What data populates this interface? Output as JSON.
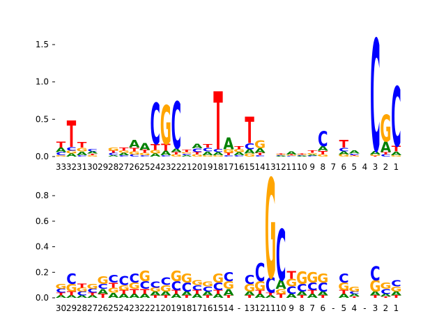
{
  "colors": {
    "A": "#008000",
    "C": "#0000ff",
    "G": "#ffa500",
    "T": "#ff0000",
    "axis": "#000000"
  },
  "chart_data": [
    {
      "type": "sequence-logo",
      "title": "",
      "xlabel": "",
      "ylabel": "",
      "ylim": [
        0,
        1.65
      ],
      "yticks": [
        "0.0",
        "0.5",
        "1.0",
        "1.5"
      ],
      "ytick_values": [
        0.0,
        0.5,
        1.0,
        1.5
      ],
      "positions": [
        {
          "label": "33",
          "letters": {
            "A": 0.06,
            "C": 0.04,
            "G": 0.02,
            "T": 0.08
          }
        },
        {
          "label": "32",
          "letters": {
            "A": 0.04,
            "C": 0.05,
            "G": 0.04,
            "T": 0.35
          }
        },
        {
          "label": "31",
          "letters": {
            "A": 0.05,
            "C": 0.02,
            "G": 0.05,
            "T": 0.07
          }
        },
        {
          "label": "30",
          "letters": {
            "A": 0.03,
            "C": 0.03,
            "G": 0.02,
            "T": 0.02
          }
        },
        {
          "label": "29",
          "letters": {
            "A": 0.0,
            "C": 0.0,
            "G": 0.0,
            "T": 0.0
          }
        },
        {
          "label": "28",
          "letters": {
            "A": 0.02,
            "C": 0.03,
            "G": 0.04,
            "T": 0.03
          }
        },
        {
          "label": "27",
          "letters": {
            "A": 0.03,
            "C": 0.02,
            "G": 0.03,
            "T": 0.04
          }
        },
        {
          "label": "26",
          "letters": {
            "A": 0.1,
            "C": 0.03,
            "G": 0.04,
            "T": 0.05
          }
        },
        {
          "label": "25",
          "letters": {
            "A": 0.09,
            "C": 0.02,
            "G": 0.03,
            "T": 0.04
          }
        },
        {
          "label": "24",
          "letters": {
            "A": 0.04,
            "C": 0.55,
            "G": 0.05,
            "T": 0.08
          }
        },
        {
          "label": "23",
          "letters": {
            "A": 0.06,
            "C": 0.02,
            "G": 0.52,
            "T": 0.09
          }
        },
        {
          "label": "22",
          "letters": {
            "A": 0.05,
            "C": 0.63,
            "G": 0.03,
            "T": 0.03
          }
        },
        {
          "label": "21",
          "letters": {
            "A": 0.02,
            "C": 0.02,
            "G": 0.02,
            "T": 0.03
          }
        },
        {
          "label": "20",
          "letters": {
            "A": 0.06,
            "C": 0.05,
            "G": 0.03,
            "T": 0.03
          }
        },
        {
          "label": "19",
          "letters": {
            "A": 0.05,
            "C": 0.05,
            "G": 0.02,
            "T": 0.05
          }
        },
        {
          "label": "18",
          "letters": {
            "A": 0.04,
            "C": 0.04,
            "G": 0.02,
            "T": 0.78
          }
        },
        {
          "label": "17",
          "letters": {
            "A": 0.16,
            "C": 0.02,
            "G": 0.05,
            "T": 0.03
          }
        },
        {
          "label": "16",
          "letters": {
            "A": 0.04,
            "C": 0.02,
            "G": 0.04,
            "T": 0.04
          }
        },
        {
          "label": "15",
          "letters": {
            "A": 0.06,
            "C": 0.08,
            "G": 0.04,
            "T": 0.35
          }
        },
        {
          "label": "14",
          "letters": {
            "A": 0.06,
            "C": 0.02,
            "G": 0.11,
            "T": 0.03
          }
        },
        {
          "label": "13",
          "letters": {
            "A": 0.0,
            "C": 0.0,
            "G": 0.0,
            "T": 0.0
          }
        },
        {
          "label": "12",
          "letters": {
            "A": 0.01,
            "C": 0.01,
            "G": 0.01,
            "T": 0.01
          }
        },
        {
          "label": "11",
          "letters": {
            "A": 0.04,
            "C": 0.01,
            "G": 0.01,
            "T": 0.01
          }
        },
        {
          "label": "10",
          "letters": {
            "A": 0.01,
            "C": 0.01,
            "G": 0.01,
            "T": 0.01
          }
        },
        {
          "label": "9",
          "letters": {
            "A": 0.02,
            "C": 0.01,
            "G": 0.02,
            "T": 0.03
          }
        },
        {
          "label": "8",
          "letters": {
            "A": 0.06,
            "C": 0.2,
            "G": 0.03,
            "T": 0.05
          }
        },
        {
          "label": "7",
          "letters": {
            "A": 0.0,
            "C": 0.0,
            "G": 0.0,
            "T": 0.0
          }
        },
        {
          "label": "6",
          "letters": {
            "A": 0.04,
            "C": 0.05,
            "G": 0.03,
            "T": 0.1
          }
        },
        {
          "label": "5",
          "letters": {
            "A": 0.04,
            "C": 0.02,
            "G": 0.01,
            "T": 0.01
          }
        },
        {
          "label": "4",
          "letters": {
            "A": 0.0,
            "C": 0.0,
            "G": 0.0,
            "T": 0.0
          }
        },
        {
          "label": "3",
          "letters": {
            "A": 0.05,
            "C": 1.5,
            "G": 0.02,
            "T": 0.01
          }
        },
        {
          "label": "2",
          "letters": {
            "A": 0.14,
            "C": 0.03,
            "G": 0.36,
            "T": 0.03
          }
        },
        {
          "label": "1",
          "letters": {
            "A": 0.05,
            "C": 0.8,
            "G": 0.02,
            "T": 0.07
          }
        }
      ]
    },
    {
      "type": "sequence-logo",
      "title": "",
      "xlabel": "",
      "ylabel": "",
      "ylim": [
        0,
        0.97
      ],
      "yticks": [
        "0.0",
        "0.2",
        "0.4",
        "0.6",
        "0.8"
      ],
      "ytick_values": [
        0.0,
        0.2,
        0.4,
        0.6,
        0.8
      ],
      "positions": [
        {
          "label": "30",
          "letters": {
            "A": 0.02,
            "C": 0.03,
            "G": 0.04,
            "T": 0.02
          }
        },
        {
          "label": "29",
          "letters": {
            "A": 0.02,
            "C": 0.08,
            "G": 0.06,
            "T": 0.03
          }
        },
        {
          "label": "28",
          "letters": {
            "A": 0.02,
            "C": 0.03,
            "G": 0.03,
            "T": 0.03
          }
        },
        {
          "label": "27",
          "letters": {
            "A": 0.02,
            "C": 0.03,
            "G": 0.04,
            "T": 0.02
          }
        },
        {
          "label": "26",
          "letters": {
            "A": 0.04,
            "C": 0.04,
            "G": 0.06,
            "T": 0.03
          }
        },
        {
          "label": "25",
          "letters": {
            "A": 0.04,
            "C": 0.06,
            "G": 0.04,
            "T": 0.04
          }
        },
        {
          "label": "24",
          "letters": {
            "A": 0.03,
            "C": 0.07,
            "G": 0.04,
            "T": 0.03
          }
        },
        {
          "label": "23",
          "letters": {
            "A": 0.03,
            "C": 0.07,
            "G": 0.05,
            "T": 0.04
          }
        },
        {
          "label": "22",
          "letters": {
            "A": 0.03,
            "C": 0.06,
            "G": 0.08,
            "T": 0.04
          }
        },
        {
          "label": "21",
          "letters": {
            "A": 0.03,
            "C": 0.05,
            "G": 0.03,
            "T": 0.02
          }
        },
        {
          "label": "20",
          "letters": {
            "A": 0.03,
            "C": 0.06,
            "G": 0.05,
            "T": 0.02
          }
        },
        {
          "label": "19",
          "letters": {
            "A": 0.03,
            "C": 0.07,
            "G": 0.08,
            "T": 0.03
          }
        },
        {
          "label": "18",
          "letters": {
            "A": 0.03,
            "C": 0.07,
            "G": 0.07,
            "T": 0.02
          }
        },
        {
          "label": "17",
          "letters": {
            "A": 0.03,
            "C": 0.04,
            "G": 0.04,
            "T": 0.03
          }
        },
        {
          "label": "16",
          "letters": {
            "A": 0.03,
            "C": 0.04,
            "G": 0.04,
            "T": 0.02
          }
        },
        {
          "label": "15",
          "letters": {
            "A": 0.03,
            "C": 0.06,
            "G": 0.07,
            "T": 0.03
          }
        },
        {
          "label": "14",
          "letters": {
            "A": 0.05,
            "C": 0.07,
            "G": 0.06,
            "T": 0.02
          }
        },
        {
          "label": "-",
          "letters": {
            "A": 0.0,
            "C": 0.0,
            "G": 0.0,
            "T": 0.0
          }
        },
        {
          "label": "13",
          "letters": {
            "A": 0.03,
            "C": 0.07,
            "G": 0.06,
            "T": 0.02
          }
        },
        {
          "label": "12",
          "letters": {
            "A": 0.03,
            "C": 0.14,
            "G": 0.07,
            "T": 0.03
          }
        },
        {
          "label": "11",
          "letters": {
            "A": 0.02,
            "C": 0.12,
            "G": 0.78,
            "T": 0.02
          }
        },
        {
          "label": "10",
          "letters": {
            "A": 0.07,
            "C": 0.4,
            "G": 0.04,
            "T": 0.03
          }
        },
        {
          "label": "9",
          "letters": {
            "A": 0.03,
            "C": 0.06,
            "G": 0.06,
            "T": 0.06
          }
        },
        {
          "label": "8",
          "letters": {
            "A": 0.03,
            "C": 0.06,
            "G": 0.1,
            "T": 0.02
          }
        },
        {
          "label": "7",
          "letters": {
            "A": 0.03,
            "C": 0.06,
            "G": 0.08,
            "T": 0.03
          }
        },
        {
          "label": "6",
          "letters": {
            "A": 0.03,
            "C": 0.07,
            "G": 0.07,
            "T": 0.02
          }
        },
        {
          "label": "-",
          "letters": {
            "A": 0.0,
            "C": 0.0,
            "G": 0.0,
            "T": 0.0
          }
        },
        {
          "label": "5",
          "letters": {
            "A": 0.03,
            "C": 0.07,
            "G": 0.06,
            "T": 0.03
          }
        },
        {
          "label": "4",
          "letters": {
            "A": 0.02,
            "C": 0.02,
            "G": 0.04,
            "T": 0.01
          }
        },
        {
          "label": "-",
          "letters": {
            "A": 0.0,
            "C": 0.0,
            "G": 0.0,
            "T": 0.0
          }
        },
        {
          "label": "3",
          "letters": {
            "A": 0.03,
            "C": 0.11,
            "G": 0.09,
            "T": 0.02
          }
        },
        {
          "label": "2",
          "letters": {
            "A": 0.02,
            "C": 0.04,
            "G": 0.05,
            "T": 0.01
          }
        },
        {
          "label": "1",
          "letters": {
            "A": 0.03,
            "C": 0.05,
            "G": 0.04,
            "T": 0.02
          }
        }
      ]
    }
  ]
}
